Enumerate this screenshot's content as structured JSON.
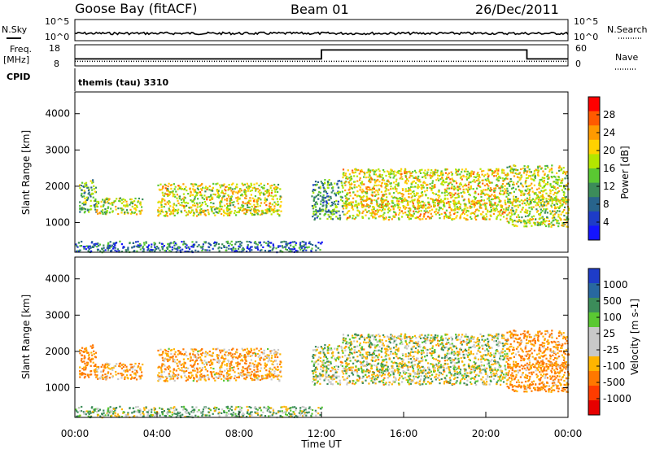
{
  "header": {
    "station": "Goose Bay (fitACF)",
    "beam": "Beam 01",
    "date": "26/Dec/2011"
  },
  "noise_panel": {
    "left_label": "N.Sky",
    "right_label": "N.Search",
    "left_ticks": [
      "10^5",
      "10^0"
    ],
    "right_ticks": [
      "10^5",
      "10^0"
    ]
  },
  "freq_panel": {
    "left_label_line1": "Freq.",
    "left_label_line2": "[MHz]",
    "left_ticks": [
      "18",
      "8"
    ],
    "right_ticks": [
      "60",
      "0"
    ],
    "right_label": "Nave",
    "cpid_label": "CPID",
    "cpid_value": "themis (tau) 3310",
    "freq_step": {
      "x": [
        0,
        12.0,
        12.0,
        22.0,
        22.0,
        24
      ],
      "y": [
        11,
        11,
        16,
        16,
        11,
        11
      ]
    },
    "nave_level": 10
  },
  "power_panel": {
    "ylabel": "Slant Range [km]",
    "yticks": [
      "4000",
      "3000",
      "2000",
      "1000"
    ],
    "colorbar_label": "Power [dB]",
    "colorbar_ticks": [
      "28",
      "24",
      "20",
      "16",
      "12",
      "8",
      "4"
    ],
    "colors": [
      "#ff0000",
      "#ff5a00",
      "#ff9a00",
      "#ffd200",
      "#b4e600",
      "#5ac832",
      "#3c8c5a",
      "#28648c",
      "#1e3cc8",
      "#1414ff"
    ]
  },
  "velocity_panel": {
    "ylabel": "Slant Range [km]",
    "yticks": [
      "4000",
      "3000",
      "2000",
      "1000"
    ],
    "colorbar_label": "Velocity [m s-1]",
    "colorbar_ticks": [
      "1000",
      "500",
      "100",
      "25",
      "-25",
      "-100",
      "-500",
      "-1000"
    ],
    "colors": [
      "#1e3cc8",
      "#2868a0",
      "#3c8c5a",
      "#5ac832",
      "#c8c8c8",
      "#c8c8c8",
      "#ffb400",
      "#ff7800",
      "#ff3c00",
      "#e60000"
    ]
  },
  "x_axis": {
    "label": "Time UT",
    "ticks": [
      "00:00",
      "04:00",
      "08:00",
      "12:00",
      "16:00",
      "20:00",
      "00:00"
    ]
  },
  "chart_data": {
    "type": "heatmap",
    "x_range_hours": [
      0,
      24
    ],
    "y_range_km": [
      180,
      4600
    ],
    "scatter_blobs": [
      {
        "t": [
          0.2,
          1.0
        ],
        "r": [
          1300,
          2200
        ],
        "power_db": 14,
        "velocity": -150
      },
      {
        "t": [
          1.0,
          3.3
        ],
        "r": [
          1250,
          1700
        ],
        "power_db": 18,
        "velocity": -100
      },
      {
        "t": [
          4.0,
          10.0
        ],
        "r": [
          1200,
          2100
        ],
        "power_db": 19,
        "velocity": -80
      },
      {
        "t": [
          11.5,
          13.0
        ],
        "r": [
          1100,
          2200
        ],
        "power_db": 12,
        "velocity": 0
      },
      {
        "t": [
          13.0,
          21.0
        ],
        "r": [
          1100,
          2500
        ],
        "power_db": 20,
        "velocity": 0
      },
      {
        "t": [
          21.0,
          24.0
        ],
        "r": [
          900,
          2600
        ],
        "power_db": 18,
        "velocity": -120
      },
      {
        "t": [
          0.0,
          12.0
        ],
        "r": [
          200,
          500
        ],
        "power_db": 8,
        "velocity": 50
      }
    ]
  }
}
